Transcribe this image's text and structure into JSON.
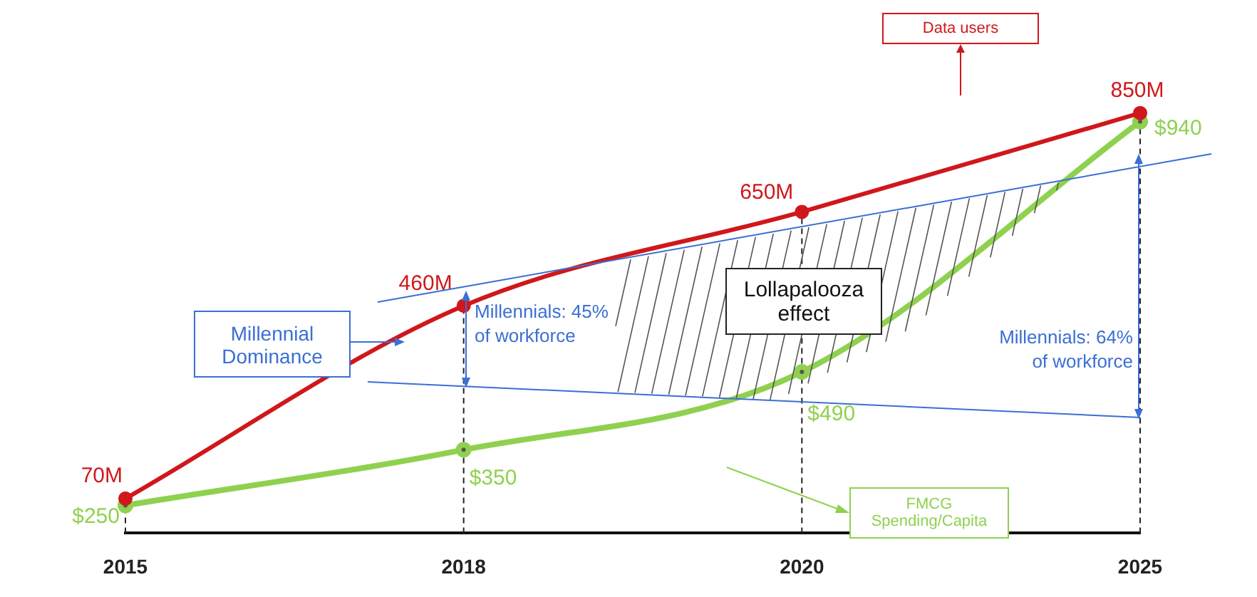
{
  "chart_data": {
    "type": "line",
    "categories": [
      "2015",
      "2018",
      "2020",
      "2025"
    ],
    "series": [
      {
        "name": "Data users",
        "color": "#d0171b",
        "values": [
          70,
          460,
          650,
          850
        ],
        "value_labels": [
          "70M",
          "460M",
          "650M",
          "850M"
        ]
      },
      {
        "name": "FMCG Spending/Capita",
        "color": "#8fd14f",
        "axis": "y2",
        "values": [
          250,
          350,
          490,
          940
        ],
        "value_labels": [
          "$250",
          "$350",
          "$490",
          "$940"
        ]
      }
    ],
    "grid": "x",
    "legend": false,
    "marker": "circle",
    "line_style": "solid",
    "annotations": [
      "Millennial Dominance",
      "Millennials: 45% of workforce",
      "Lollapalooza effect",
      "Millennials: 64% of workforce"
    ]
  }
}
